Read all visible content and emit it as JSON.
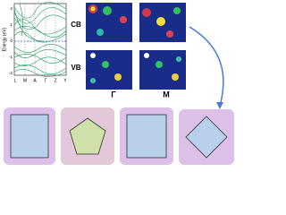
{
  "band_plot": {
    "y_label": "Energy (eV)",
    "y_tick_labels": [
      "2",
      "1",
      "0",
      "-1",
      "-2"
    ],
    "k_labels": [
      "L",
      "M",
      "A",
      "Γ",
      "Z",
      "Y"
    ]
  },
  "density_panels": {
    "row_labels": [
      "CB",
      "VB"
    ],
    "column_labels": [
      "Γ",
      "M"
    ]
  }
}
